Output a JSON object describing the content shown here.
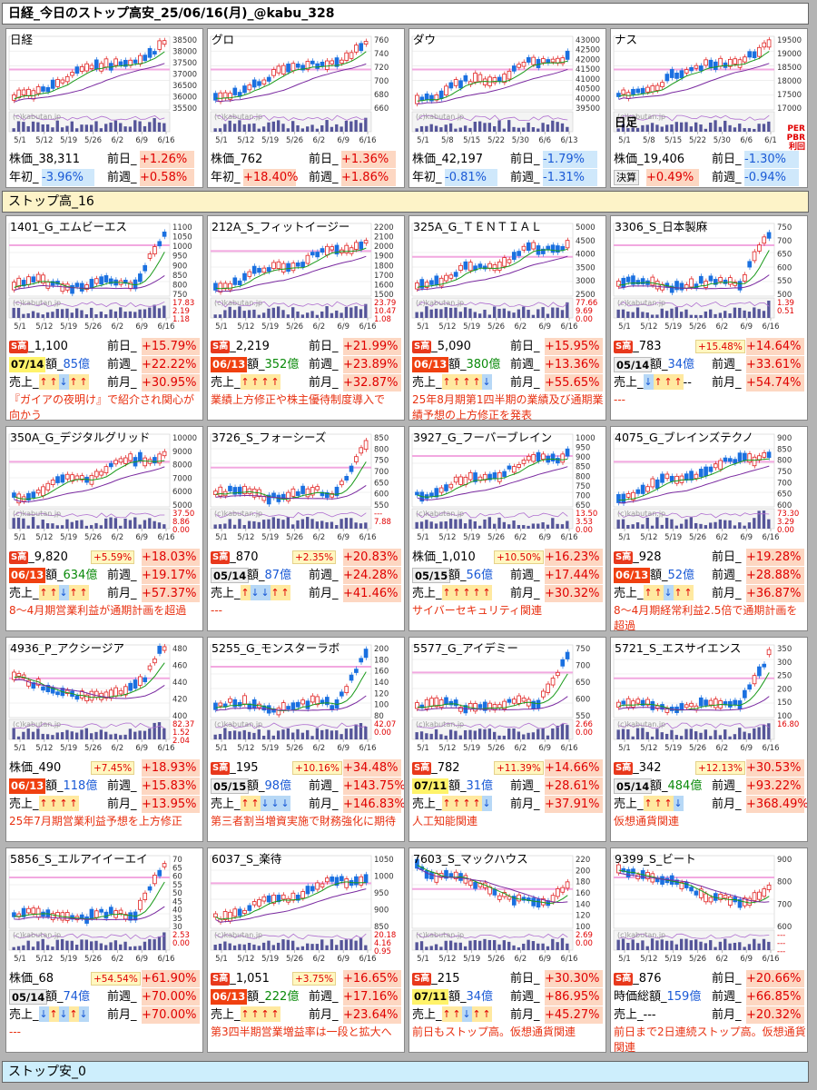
{
  "title": "日経_今日のストップ高安_25/06/16(月)_@kabu_328",
  "sections": {
    "high": "ストップ高_16",
    "low": "ストップ安_0"
  },
  "watermark": "(c)kabutan.jp",
  "indices": [
    {
      "name": "日経",
      "price": "株価_38,311",
      "day_label": "前日_",
      "day": "+1.26%",
      "day_dir": "pos",
      "r2_label": "年初_",
      "r2": "-3.96%",
      "r2_dir": "neg",
      "w_label": "前週_",
      "w": "+0.58%",
      "w_dir": "pos",
      "yticks": [
        "38500",
        "38000",
        "37500",
        "37000",
        "36500",
        "36000",
        "35500"
      ],
      "xticks": [
        "5/1",
        "5/12",
        "5/19",
        "5/26",
        "6/2",
        "6/9",
        "6/16"
      ]
    },
    {
      "name": "グロ",
      "price": "株価_762",
      "day_label": "前日_",
      "day": "+1.36%",
      "day_dir": "pos",
      "r2_label": "年初_",
      "r2": "+18.40%",
      "r2_dir": "pos",
      "w_label": "前週_",
      "w": "+1.86%",
      "w_dir": "pos",
      "yticks": [
        "760",
        "740",
        "720",
        "700",
        "680",
        "660"
      ],
      "xticks": [
        "5/1",
        "5/12",
        "5/19",
        "5/26",
        "6/2",
        "6/9",
        "6/16"
      ]
    },
    {
      "name": "ダウ",
      "price": "株価_42,197",
      "day_label": "前日_",
      "day": "-1.79%",
      "day_dir": "neg",
      "r2_label": "年初_",
      "r2": "-0.81%",
      "r2_dir": "neg",
      "w_label": "前週_",
      "w": "-1.31%",
      "w_dir": "neg",
      "yticks": [
        "43000",
        "42500",
        "42000",
        "41500",
        "41000",
        "40500",
        "40000",
        "39500"
      ],
      "xticks": [
        "5/1",
        "5/8",
        "5/15",
        "5/22",
        "5/30",
        "6/6",
        "6/13"
      ]
    },
    {
      "name": "ナス",
      "sub": "日足",
      "price": "株価_19,406",
      "day_label": "前日_",
      "day": "-1.30%",
      "day_dir": "neg",
      "r2_label": "決算",
      "r2": "+0.49%",
      "r2_dir": "pos",
      "w_label": "前週_",
      "w": "-0.94%",
      "w_dir": "neg",
      "yticks": [
        "19500",
        "19000",
        "18500",
        "18000",
        "17500",
        "17000"
      ],
      "side": [
        "PER",
        "PBR",
        "利回"
      ],
      "xticks": [
        "5/1",
        "5/8",
        "5/15",
        "5/22",
        "5/30",
        "6/6",
        "6/1"
      ]
    }
  ],
  "stocks": [
    {
      "name": "1401_G_エムビーエス",
      "yticks": [
        "1100",
        "1050",
        "1000",
        "950",
        "900",
        "850",
        "800",
        "750"
      ],
      "vol": [
        "17.83",
        "2.19",
        "1.18"
      ],
      "r1": {
        "label": "_1,100",
        "s": true,
        "small": "",
        "day": "+15.79%"
      },
      "r2": {
        "date": "07/14",
        "dstyle": "d-yel",
        "cap": "85億",
        "capc": "cap",
        "w": "+22.22%"
      },
      "arrows": [
        "up",
        "up",
        "dn",
        "up",
        "up"
      ],
      "m": "+30.95%",
      "note": "『ガイアの夜明け』で紹介され関心が向かう"
    },
    {
      "name": "212A_S_フィットイージー",
      "yticks": [
        "2200",
        "2100",
        "2000",
        "1900",
        "1800",
        "1700",
        "1600",
        "1500"
      ],
      "vol": [
        "23.79",
        "10.47",
        "1.08"
      ],
      "r1": {
        "label": "_2,219",
        "s": true,
        "small": "",
        "day": "+21.99%"
      },
      "r2": {
        "date": "06/13",
        "dstyle": "d-red",
        "cap": "352億",
        "capc": "cap-green",
        "w": "+23.89%"
      },
      "arrows": [
        "up",
        "up",
        "up",
        "up"
      ],
      "m": "+32.87%",
      "note": "業績上方修正や株主優待制度導入で"
    },
    {
      "name": "325A_G_ＴＥＮＴＩＡＬ",
      "yticks": [
        "5000",
        "4500",
        "4000",
        "3500",
        "3000",
        "2500"
      ],
      "vol": [
        "77.66",
        "9.69",
        "0.00"
      ],
      "r1": {
        "label": "_5,090",
        "s": true,
        "small": "",
        "day": "+15.95%"
      },
      "r2": {
        "date": "06/13",
        "dstyle": "d-red",
        "cap": "380億",
        "capc": "cap-green",
        "w": "+13.36%"
      },
      "arrows": [
        "up",
        "up",
        "up",
        "up",
        "dn"
      ],
      "m": "+55.65%",
      "note": "25年8月期第1四半期の業績及び通期業績予想の上方修正を発表"
    },
    {
      "name": "3306_S_日本製麻",
      "yticks": [
        "750",
        "700",
        "650",
        "600",
        "550",
        "500"
      ],
      "vol": [
        "1.39",
        "0.51"
      ],
      "r1": {
        "label": "_783",
        "s": true,
        "small": "+15.48%",
        "day": "+14.64%"
      },
      "r2": {
        "date": "05/14",
        "dstyle": "d-gray",
        "cap": "34億",
        "capc": "cap",
        "w": "+33.61%"
      },
      "arrows": [
        "dn",
        "up",
        "up",
        "up"
      ],
      "m": "+54.74%",
      "dash": "--",
      "note": "---"
    },
    {
      "name": "350A_G_デジタルグリッド",
      "yticks": [
        "10000",
        "9000",
        "8000",
        "7000",
        "6000",
        "5000"
      ],
      "vol": [
        "37.50",
        "8.86",
        "0.00"
      ],
      "r1": {
        "label": "_9,820",
        "s": true,
        "small": "+5.59%",
        "day": "+18.03%"
      },
      "r2": {
        "date": "06/13",
        "dstyle": "d-red",
        "cap": "634億",
        "capc": "cap-green",
        "w": "+19.17%"
      },
      "arrows": [
        "up",
        "up",
        "dn",
        "up",
        "up"
      ],
      "m": "+57.37%",
      "note": "8～4月期営業利益が通期計画を超過"
    },
    {
      "name": "3726_S_フォーシーズ",
      "yticks": [
        "850",
        "800",
        "750",
        "700",
        "650",
        "600",
        "550"
      ],
      "vol": [
        "---",
        "7.88"
      ],
      "r1": {
        "label": "_870",
        "s": true,
        "small": "+2.35%",
        "day": "+20.83%"
      },
      "r2": {
        "date": "05/14",
        "dstyle": "d-gray",
        "cap": "87億",
        "capc": "cap",
        "w": "+24.28%"
      },
      "arrows": [
        "up",
        "dn",
        "dn",
        "up",
        "up"
      ],
      "m": "+41.46%",
      "note": "---"
    },
    {
      "name": "3927_G_フーバーブレイン",
      "yticks": [
        "1000",
        "950",
        "900",
        "850",
        "800",
        "750",
        "700",
        "650"
      ],
      "vol": [
        "13.50",
        "3.53",
        "0.00"
      ],
      "r1": {
        "label": "株価_1,010",
        "s": false,
        "small": "+10.50%",
        "day": "+16.23%"
      },
      "r2": {
        "date": "05/15",
        "dstyle": "d-gray",
        "cap": "56億",
        "capc": "cap",
        "w": "+17.44%"
      },
      "arrows": [
        "up",
        "up",
        "up",
        "up",
        "up"
      ],
      "m": "+30.32%",
      "note": "サイバーセキュリティ関連"
    },
    {
      "name": "4075_G_ブレインズテクノ",
      "yticks": [
        "900",
        "850",
        "800",
        "750",
        "700",
        "650",
        "600"
      ],
      "vol": [
        "73.30",
        "3.29",
        "0.00"
      ],
      "r1": {
        "label": "_928",
        "s": true,
        "small": "",
        "day": "+19.28%"
      },
      "r2": {
        "date": "06/13",
        "dstyle": "d-red",
        "cap": "52億",
        "capc": "cap",
        "w": "+28.88%"
      },
      "arrows": [
        "up",
        "up",
        "dn",
        "up",
        "up"
      ],
      "m": "+36.87%",
      "note": "8～4月期経常利益2.5倍で通期計画を超過"
    },
    {
      "name": "4936_P_アクシージア",
      "yticks": [
        "480",
        "460",
        "440",
        "420",
        "400"
      ],
      "vol": [
        "82.37",
        "1.52",
        "2.04"
      ],
      "r1": {
        "label": "株価_490",
        "s": false,
        "small": "+7.45%",
        "day": "+18.93%"
      },
      "r2": {
        "date": "06/13",
        "dstyle": "d-red",
        "cap": "118億",
        "capc": "cap",
        "w": "+15.83%"
      },
      "arrows": [
        "up",
        "up",
        "up",
        "up"
      ],
      "m": "+13.95%",
      "note": "25年7月期営業利益予想を上方修正"
    },
    {
      "name": "5255_G_モンスターラボ",
      "yticks": [
        "200",
        "180",
        "160",
        "140",
        "120",
        "100",
        "80"
      ],
      "vol": [
        "42.07",
        "0.00"
      ],
      "r1": {
        "label": "_195",
        "s": true,
        "small": "+10.16%",
        "day": "+34.48%"
      },
      "r2": {
        "date": "05/15",
        "dstyle": "d-gray",
        "cap": "98億",
        "capc": "cap",
        "w": "+143.75%"
      },
      "arrows": [
        "up",
        "up",
        "dn",
        "dn",
        "dn"
      ],
      "m": "+146.83%",
      "note": "第三者割当増資実施で財務強化に期待"
    },
    {
      "name": "5577_G_アイデミー",
      "yticks": [
        "750",
        "700",
        "650",
        "600",
        "550"
      ],
      "vol": [
        "2.66",
        "0.00"
      ],
      "r1": {
        "label": "_782",
        "s": true,
        "small": "+11.39%",
        "day": "+14.66%"
      },
      "r2": {
        "date": "07/11",
        "dstyle": "d-yel",
        "cap": "31億",
        "capc": "cap",
        "w": "+28.61%"
      },
      "arrows": [
        "up",
        "up",
        "up",
        "up",
        "dn"
      ],
      "m": "+37.91%",
      "note": "人工知能関連"
    },
    {
      "name": "5721_S_エスサイエンス",
      "yticks": [
        "350",
        "300",
        "250",
        "200",
        "150",
        "100"
      ],
      "vol": [
        "16.80"
      ],
      "r1": {
        "label": "_342",
        "s": true,
        "small": "+12.13%",
        "day": "+30.53%"
      },
      "r2": {
        "date": "05/14",
        "dstyle": "d-gray",
        "cap": "484億",
        "capc": "cap-green",
        "w": "+93.22%"
      },
      "arrows": [
        "up",
        "up",
        "up",
        "dn"
      ],
      "m": "+368.49%",
      "note": "仮想通貨関連"
    },
    {
      "name": "5856_S_エルアイイーエイ",
      "yticks": [
        "70",
        "65",
        "60",
        "55",
        "50",
        "45",
        "40",
        "35",
        "30"
      ],
      "vol": [
        "2.53",
        "0.00"
      ],
      "r1": {
        "label": "株価_68",
        "s": false,
        "small": "+54.54%",
        "day": "+61.90%"
      },
      "r2": {
        "date": "05/14",
        "dstyle": "d-gray",
        "cap": "74億",
        "capc": "cap",
        "w": "+70.00%"
      },
      "arrows": [
        "dn",
        "up",
        "dn",
        "up",
        "dn"
      ],
      "m": "+70.00%",
      "note": "---"
    },
    {
      "name": "6037_S_楽待",
      "yticks": [
        "1050",
        "1000",
        "950",
        "900",
        "850"
      ],
      "vol": [
        "20.18",
        "4.16",
        "0.95"
      ],
      "r1": {
        "label": "_1,051",
        "s": true,
        "small": "+3.75%",
        "day": "+16.65%"
      },
      "r2": {
        "date": "06/13",
        "dstyle": "d-red",
        "cap": "222億",
        "capc": "cap-green",
        "w": "+17.16%"
      },
      "arrows": [
        "up",
        "up",
        "up",
        "up"
      ],
      "m": "+23.64%",
      "note": "第3四半期営業増益率は一段と拡大へ"
    },
    {
      "name": "7603_S_マックハウス",
      "yticks": [
        "220",
        "200",
        "180",
        "160",
        "140",
        "120",
        "100"
      ],
      "vol": [
        "2.69",
        "0.00"
      ],
      "r1": {
        "label": "_215",
        "s": true,
        "small": "",
        "day": "+30.30%"
      },
      "r2": {
        "date": "07/11",
        "dstyle": "d-yel",
        "cap": "34億",
        "capc": "cap",
        "w": "+86.95%"
      },
      "arrows": [
        "up",
        "up",
        "dn",
        "up",
        "up"
      ],
      "m": "+45.27%",
      "note": "前日もストップ高。仮想通貨関連"
    },
    {
      "name": "9399_S_ビート",
      "yticks": [
        "900",
        "800",
        "700",
        "600"
      ],
      "vol": [
        "---",
        "---",
        "---"
      ],
      "r1": {
        "label": "_876",
        "s": true,
        "small": "",
        "day": "+20.66%"
      },
      "r2": {
        "date": "",
        "dstyle": "",
        "cap": "159億",
        "capc": "cap",
        "w": "+66.85%",
        "prefix": "時価総額_"
      },
      "arrows": [],
      "m": "+20.32%",
      "urilabel": "売上_---",
      "note": "前日まで2日連続ストップ高。仮想通貨関連"
    }
  ],
  "labels": {
    "day": "前日_",
    "week": "前週_",
    "month": "前月_",
    "sales": "売上_",
    "cap_prefix": "額_",
    "s_tag": "S高",
    "xticks": [
      "5/1",
      "5/12",
      "5/19",
      "5/26",
      "6/2",
      "6/9",
      "6/16"
    ]
  },
  "colors": {
    "up_candle": "#e02020",
    "down_candle": "#1a70e0",
    "ma_short": "#1a9a1a",
    "ma_long": "#7a2aa0",
    "pink_line": "#f2a8e0",
    "volume": "#555599"
  }
}
